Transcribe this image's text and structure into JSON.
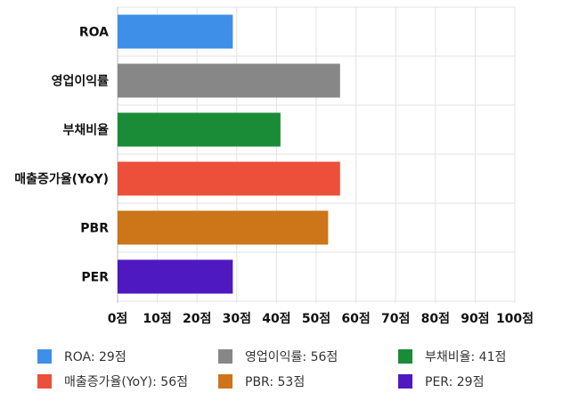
{
  "chart_data": {
    "type": "bar",
    "orientation": "horizontal",
    "categories": [
      "ROA",
      "영업이익률",
      "부채비율",
      "매출증가율(YoY)",
      "PBR",
      "PER"
    ],
    "values": [
      29,
      56,
      41,
      56,
      53,
      29
    ],
    "colors": [
      "#3d8fe8",
      "#878787",
      "#1a8c37",
      "#ec4f3a",
      "#cc7519",
      "#4f19c2"
    ],
    "xlim": [
      0,
      100
    ],
    "x_ticks": [
      "0점",
      "10점",
      "20점",
      "30점",
      "40점",
      "50점",
      "60점",
      "70점",
      "80점",
      "90점",
      "100점"
    ],
    "grid": true,
    "legend_position": "bottom",
    "legend": [
      "ROA: 29점",
      "영업이익률: 56점",
      "부채비율: 41점",
      "매출증가율(YoY): 56점",
      "PBR: 53점",
      "PER: 29점"
    ]
  }
}
